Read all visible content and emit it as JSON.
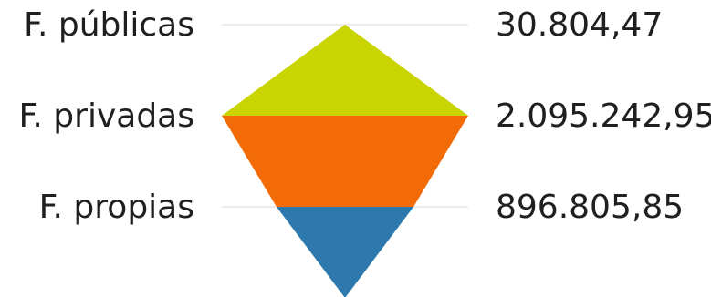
{
  "chart_data": {
    "type": "funnel",
    "title": "",
    "categories": [
      "F. públicas",
      "F. privadas",
      "F. propias"
    ],
    "values": [
      30804.47,
      2095242.95,
      896805.85
    ],
    "value_labels": [
      "30.804,47",
      "2.095.242,95",
      "896.805,85"
    ],
    "colors": [
      "#cad400",
      "#f26b06",
      "#2d79ad"
    ],
    "gridline_color": "#d9d9d9",
    "legend": "none"
  }
}
